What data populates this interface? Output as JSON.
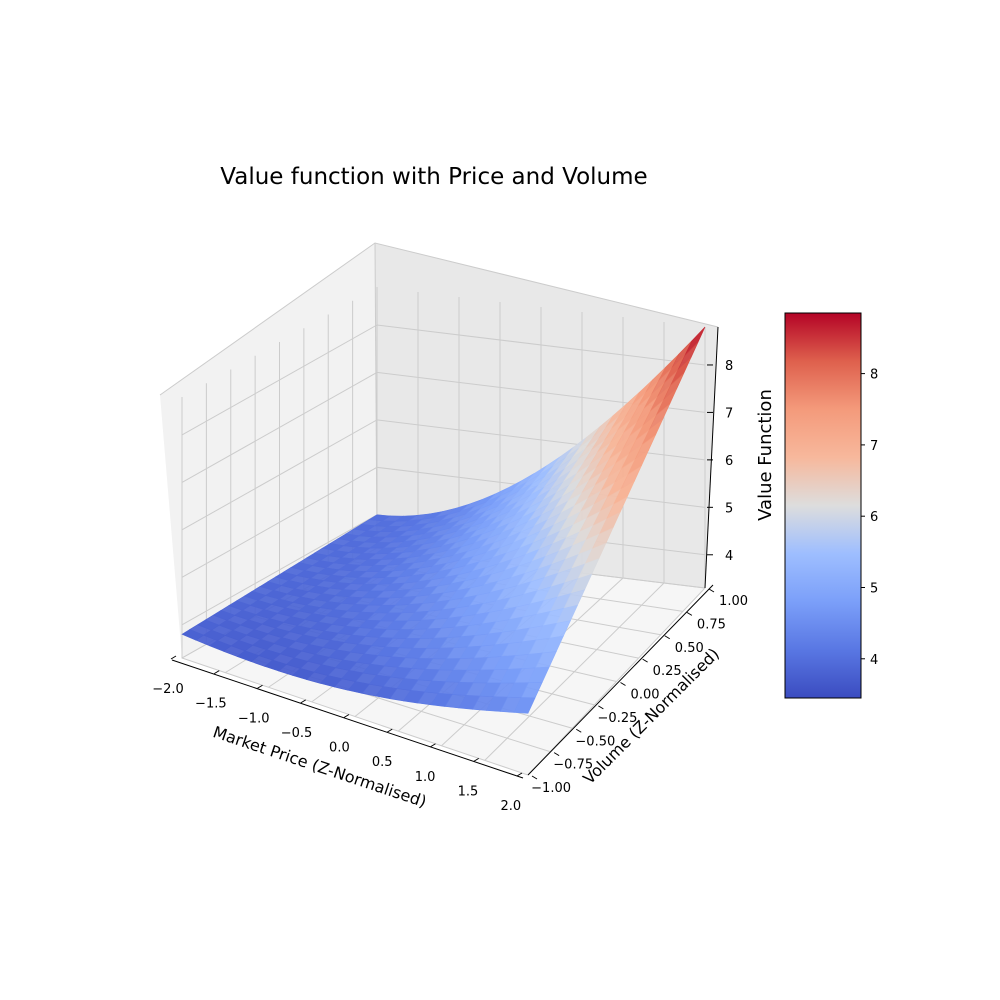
{
  "chart_data": {
    "type": "surface3d",
    "title": "Value function with Price and Volume",
    "xlabel": "Market Price (Z-Normalised)",
    "ylabel": "Volume (Z-Normalised)",
    "zlabel": "Value Function",
    "xlim": [
      -2.0,
      2.0
    ],
    "ylim": [
      -1.0,
      1.0
    ],
    "zlim": [
      3.3,
      8.8
    ],
    "x_ticks": [
      "−2.0",
      "−1.5",
      "−1.0",
      "−0.5",
      "0.0",
      "0.5",
      "1.0",
      "1.5",
      "2.0"
    ],
    "y_ticks": [
      "−1.00",
      "−0.75",
      "−0.50",
      "−0.25",
      "0.00",
      "0.25",
      "0.50",
      "0.75",
      "1.00"
    ],
    "z_ticks": [
      "4",
      "5",
      "6",
      "7",
      "8"
    ],
    "colorbar_ticks": [
      "4",
      "5",
      "6",
      "7",
      "8"
    ],
    "colormap": "coolwarm",
    "colorbar_range": [
      3.45,
      8.85
    ],
    "corner_values": {
      "x_min_y_min": 3.8,
      "x_max_y_min": 4.6,
      "x_min_y_max": 4.0,
      "x_max_y_max": 8.8
    },
    "grid": true,
    "colors": {
      "pane": "#f2f2f2",
      "grid": "#cccccc",
      "low": "#3b4cc0",
      "mid": "#dddddd",
      "high": "#b40426"
    }
  }
}
